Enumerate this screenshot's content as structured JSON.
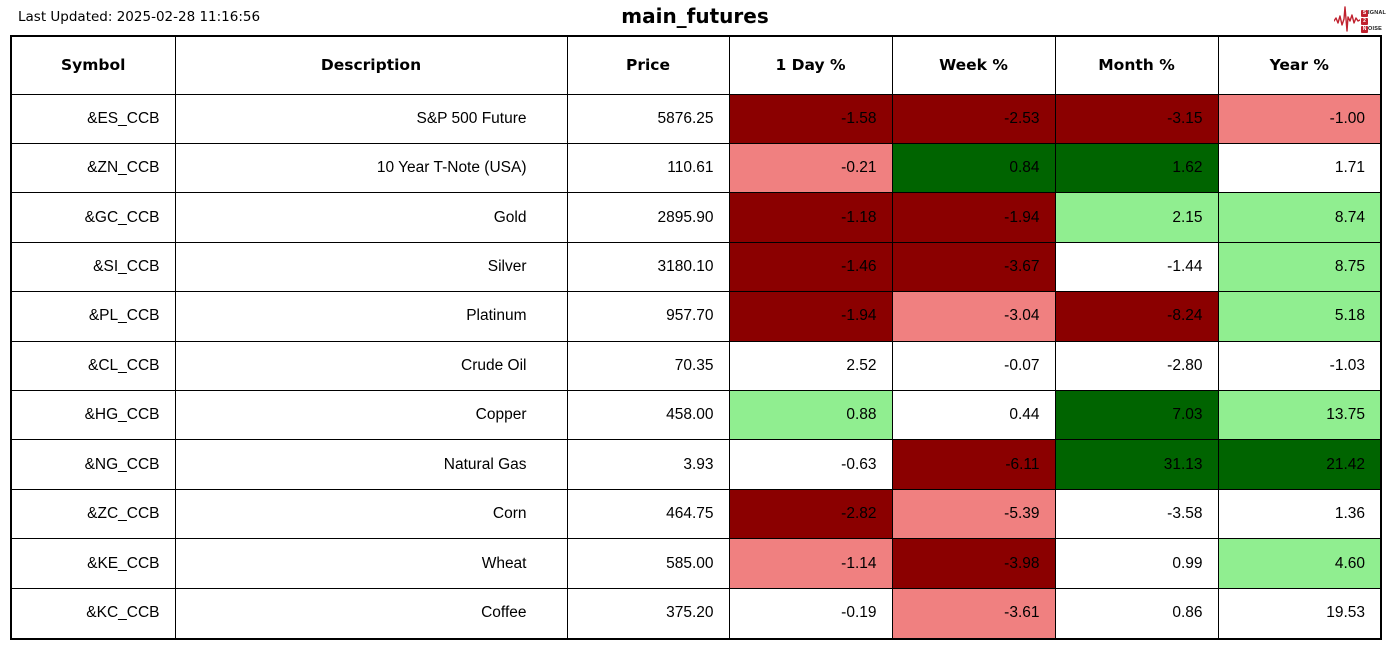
{
  "header": {
    "last_updated": "Last Updated: 2025-02-28 11:16:56",
    "title": "main_futures",
    "logo": {
      "icon": "ecg-waveform-icon",
      "line1_initial": "S",
      "line1_rest": "IGNAL",
      "line2_initial": "2",
      "line2_rest": "",
      "line3_initial": "N",
      "line3_rest": "OISE"
    }
  },
  "colors": {
    "dark_red": "#8B0000",
    "light_red": "#F08080",
    "dark_green": "#006400",
    "light_green": "#90EE90",
    "white": "#FFFFFF",
    "logo_red": "#C0212E",
    "border": "#000000"
  },
  "table": {
    "columns": [
      "Symbol",
      "Description",
      "Price",
      "1 Day %",
      "Week %",
      "Month %",
      "Year %"
    ],
    "rows": [
      {
        "symbol": "&ES_CCB",
        "description": "S&P 500 Future",
        "price": "5876.25",
        "changes": [
          {
            "value": "-1.58",
            "color": "dark_red"
          },
          {
            "value": "-2.53",
            "color": "dark_red"
          },
          {
            "value": "-3.15",
            "color": "dark_red"
          },
          {
            "value": "-1.00",
            "color": "light_red"
          }
        ]
      },
      {
        "symbol": "&ZN_CCB",
        "description": "10 Year T-Note (USA)",
        "price": "110.61",
        "changes": [
          {
            "value": "-0.21",
            "color": "light_red"
          },
          {
            "value": "0.84",
            "color": "dark_green"
          },
          {
            "value": "1.62",
            "color": "dark_green"
          },
          {
            "value": "1.71",
            "color": "white"
          }
        ]
      },
      {
        "symbol": "&GC_CCB",
        "description": "Gold",
        "price": "2895.90",
        "changes": [
          {
            "value": "-1.18",
            "color": "dark_red"
          },
          {
            "value": "-1.94",
            "color": "dark_red"
          },
          {
            "value": "2.15",
            "color": "light_green"
          },
          {
            "value": "8.74",
            "color": "light_green"
          }
        ]
      },
      {
        "symbol": "&SI_CCB",
        "description": "Silver",
        "price": "3180.10",
        "changes": [
          {
            "value": "-1.46",
            "color": "dark_red"
          },
          {
            "value": "-3.67",
            "color": "dark_red"
          },
          {
            "value": "-1.44",
            "color": "white"
          },
          {
            "value": "8.75",
            "color": "light_green"
          }
        ]
      },
      {
        "symbol": "&PL_CCB",
        "description": "Platinum",
        "price": "957.70",
        "changes": [
          {
            "value": "-1.94",
            "color": "dark_red"
          },
          {
            "value": "-3.04",
            "color": "light_red"
          },
          {
            "value": "-8.24",
            "color": "dark_red"
          },
          {
            "value": "5.18",
            "color": "light_green"
          }
        ]
      },
      {
        "symbol": "&CL_CCB",
        "description": "Crude Oil",
        "price": "70.35",
        "changes": [
          {
            "value": "2.52",
            "color": "white"
          },
          {
            "value": "-0.07",
            "color": "white"
          },
          {
            "value": "-2.80",
            "color": "white"
          },
          {
            "value": "-1.03",
            "color": "white"
          }
        ]
      },
      {
        "symbol": "&HG_CCB",
        "description": "Copper",
        "price": "458.00",
        "changes": [
          {
            "value": "0.88",
            "color": "light_green"
          },
          {
            "value": "0.44",
            "color": "white"
          },
          {
            "value": "7.03",
            "color": "dark_green"
          },
          {
            "value": "13.75",
            "color": "light_green"
          }
        ]
      },
      {
        "symbol": "&NG_CCB",
        "description": "Natural Gas",
        "price": "3.93",
        "changes": [
          {
            "value": "-0.63",
            "color": "white"
          },
          {
            "value": "-6.11",
            "color": "dark_red"
          },
          {
            "value": "31.13",
            "color": "dark_green"
          },
          {
            "value": "21.42",
            "color": "dark_green"
          }
        ]
      },
      {
        "symbol": "&ZC_CCB",
        "description": "Corn",
        "price": "464.75",
        "changes": [
          {
            "value": "-2.82",
            "color": "dark_red"
          },
          {
            "value": "-5.39",
            "color": "light_red"
          },
          {
            "value": "-3.58",
            "color": "white"
          },
          {
            "value": "1.36",
            "color": "white"
          }
        ]
      },
      {
        "symbol": "&KE_CCB",
        "description": "Wheat",
        "price": "585.00",
        "changes": [
          {
            "value": "-1.14",
            "color": "light_red"
          },
          {
            "value": "-3.98",
            "color": "dark_red"
          },
          {
            "value": "0.99",
            "color": "white"
          },
          {
            "value": "4.60",
            "color": "light_green"
          }
        ]
      },
      {
        "symbol": "&KC_CCB",
        "description": "Coffee",
        "price": "375.20",
        "changes": [
          {
            "value": "-0.19",
            "color": "white"
          },
          {
            "value": "-3.61",
            "color": "light_red"
          },
          {
            "value": "0.86",
            "color": "white"
          },
          {
            "value": "19.53",
            "color": "white"
          }
        ]
      }
    ]
  }
}
